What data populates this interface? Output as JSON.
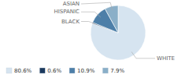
{
  "chart_data": {
    "type": "pie",
    "categories": [
      "WHITE",
      "BLACK",
      "HISPANIC",
      "ASIAN"
    ],
    "values": [
      80.6,
      0.6,
      10.9,
      7.9
    ],
    "value_labels": [
      "80.6%",
      "0.6%",
      "10.9%",
      "7.9%"
    ],
    "colors": [
      "#d6e4f0",
      "#1c3a5e",
      "#4d7fa8",
      "#8aafc8"
    ],
    "legend": "bottom"
  }
}
